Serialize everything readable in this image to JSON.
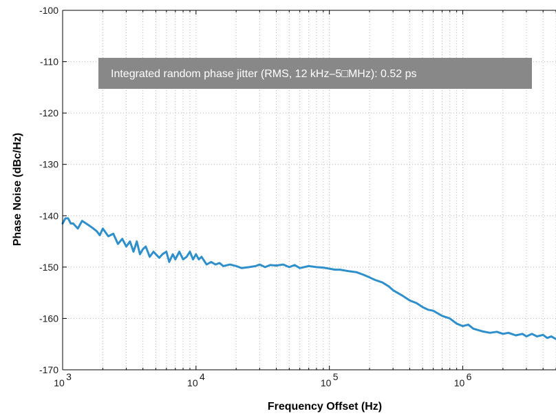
{
  "chart_data": {
    "type": "line",
    "title": "",
    "xlabel": "Frequency Offset (Hz)",
    "ylabel": "Phase Noise (dBc/Hz)",
    "x_scale": "log",
    "xlim": [
      1000,
      5000000
    ],
    "ylim": [
      -170,
      -100
    ],
    "grid": true,
    "x_ticks": [
      {
        "value": 1000,
        "base": "10",
        "exp": "3"
      },
      {
        "value": 10000,
        "base": "10",
        "exp": "4"
      },
      {
        "value": 100000,
        "base": "10",
        "exp": "5"
      },
      {
        "value": 1000000,
        "base": "10",
        "exp": "6"
      }
    ],
    "y_ticks": [
      {
        "value": -100,
        "label": "-100"
      },
      {
        "value": -110,
        "label": "-110"
      },
      {
        "value": -120,
        "label": "-120"
      },
      {
        "value": -130,
        "label": "-130"
      },
      {
        "value": -140,
        "label": "-140"
      },
      {
        "value": -150,
        "label": "-150"
      },
      {
        "value": -160,
        "label": "-160"
      },
      {
        "value": -170,
        "label": "-170"
      }
    ],
    "annotation": "Integrated random phase jitter (RMS, 12 kHz–5□MHz): 0.52 ps",
    "series": [
      {
        "color": "#2E8FCB",
        "x": [
          1000,
          1050,
          1100,
          1150,
          1200,
          1300,
          1400,
          1500,
          1600,
          1700,
          1800,
          1900,
          2000,
          2200,
          2400,
          2600,
          2800,
          3000,
          3200,
          3400,
          3600,
          3800,
          4000,
          4200,
          4500,
          4800,
          5000,
          5300,
          5600,
          6000,
          6300,
          6700,
          7000,
          7500,
          8000,
          8500,
          9000,
          9500,
          10000,
          10500,
          11000,
          12000,
          13000,
          14000,
          15000,
          16000,
          18000,
          20000,
          22000,
          25000,
          28000,
          30000,
          33000,
          36000,
          40000,
          45000,
          50000,
          55000,
          60000,
          70000,
          80000,
          90000,
          100000,
          110000,
          120000,
          140000,
          160000,
          180000,
          200000,
          220000,
          250000,
          280000,
          300000,
          350000,
          400000,
          450000,
          500000,
          550000,
          600000,
          700000,
          800000,
          900000,
          1000000,
          1100000,
          1200000,
          1400000,
          1600000,
          1800000,
          2000000,
          2200000,
          2500000,
          2800000,
          3000000,
          3300000,
          3600000,
          4000000,
          4300000,
          4600000,
          5000000
        ],
        "y": [
          -141.5,
          -140.5,
          -140.5,
          -141.5,
          -141.5,
          -142.5,
          -141.0,
          -141.5,
          -142.0,
          -142.5,
          -143.0,
          -143.8,
          -142.5,
          -144.0,
          -143.5,
          -145.5,
          -144.5,
          -146.0,
          -145.0,
          -147.0,
          -145.0,
          -147.5,
          -146.5,
          -146.0,
          -148.0,
          -147.0,
          -147.5,
          -148.2,
          -147.5,
          -147.0,
          -149.0,
          -147.5,
          -148.5,
          -147.0,
          -148.5,
          -148.0,
          -147.0,
          -148.5,
          -147.5,
          -148.5,
          -148.0,
          -149.5,
          -149.0,
          -149.5,
          -149.2,
          -149.8,
          -149.5,
          -149.8,
          -150.2,
          -150.0,
          -149.8,
          -149.5,
          -150.0,
          -149.6,
          -149.7,
          -149.5,
          -150.0,
          -149.6,
          -150.2,
          -149.8,
          -150.0,
          -150.1,
          -150.3,
          -150.5,
          -150.5,
          -150.8,
          -151.0,
          -151.5,
          -152.0,
          -152.5,
          -153.0,
          -153.8,
          -154.5,
          -155.5,
          -156.5,
          -157.0,
          -157.8,
          -158.3,
          -158.5,
          -159.5,
          -160.0,
          -161.0,
          -161.5,
          -161.2,
          -162.0,
          -162.5,
          -162.8,
          -162.6,
          -163.0,
          -162.8,
          -163.3,
          -163.0,
          -163.5,
          -163.0,
          -163.5,
          -163.2,
          -163.8,
          -163.5,
          -164.0
        ]
      }
    ]
  }
}
